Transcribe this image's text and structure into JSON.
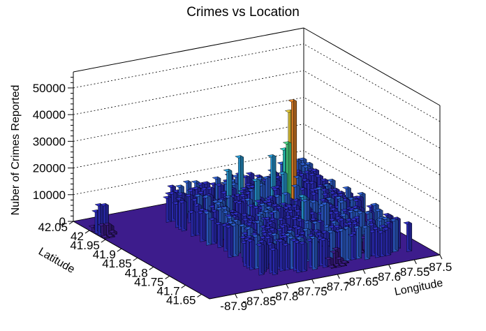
{
  "chart_data": {
    "type": "lego3d",
    "title": "Crimes vs Location",
    "xlabel": "Longitude",
    "ylabel": "Latitude",
    "zlabel": "Nuber of Crimes Reported",
    "xlim": [
      -87.95,
      -87.5
    ],
    "ylim": [
      41.625,
      42.05
    ],
    "zlim": [
      0,
      56000
    ],
    "x_ticks": [
      "-87.9",
      "-87.85",
      "-87.8",
      "-87.75",
      "-87.7",
      "-87.65",
      "-87.6",
      "-87.55",
      "-87.5"
    ],
    "y_ticks": [
      "41.65",
      "41.7",
      "41.75",
      "41.8",
      "41.85",
      "41.9",
      "41.95",
      "42",
      "42.05"
    ],
    "z_ticks": [
      "0",
      "10000",
      "20000",
      "30000",
      "40000",
      "50000"
    ],
    "grid": true,
    "palette": [
      "#3d1c8c",
      "#3030c8",
      "#2f62d6",
      "#2aa0dd",
      "#2ed6c8",
      "#4fe08a",
      "#b3e23c",
      "#f0d43a",
      "#f08a2a",
      "#c01818"
    ],
    "peaks": [
      {
        "x": -87.63,
        "y": 41.885,
        "value": 52000
      },
      {
        "x": -87.94,
        "y": 41.98,
        "value": 13500
      },
      {
        "x": -87.67,
        "y": 41.78,
        "value": 20000
      },
      {
        "x": -87.64,
        "y": 41.93,
        "value": 22000
      },
      {
        "x": -87.6,
        "y": 41.78,
        "value": 17000
      },
      {
        "x": -87.6,
        "y": 41.72,
        "value": 15000
      },
      {
        "x": -87.7,
        "y": 41.88,
        "value": 18000
      },
      {
        "x": -87.69,
        "y": 41.95,
        "value": 22000
      },
      {
        "x": -87.73,
        "y": 41.92,
        "value": 20000
      },
      {
        "x": -87.66,
        "y": 41.86,
        "value": 21000
      },
      {
        "x": -87.65,
        "y": 41.75,
        "value": 19000
      },
      {
        "x": -87.68,
        "y": 41.68,
        "value": 12000
      }
    ]
  }
}
